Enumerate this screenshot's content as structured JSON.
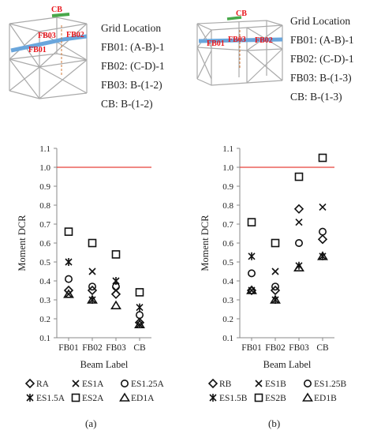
{
  "panels": [
    {
      "id": "a",
      "label": "(a)",
      "grid_location_title": "Grid Location",
      "grid_locations": [
        "FB01: (A-B)-1",
        "FB02: (C-D)-1",
        "FB03: B-(1-2)",
        "CB: B-(1-2)"
      ],
      "model_labels": [
        "CB",
        "FB03",
        "FB02",
        "FB01"
      ]
    },
    {
      "id": "b",
      "label": "(b)",
      "grid_location_title": "Grid Location",
      "grid_locations": [
        "FB01: (A-B)-1",
        "FB02: (C-D)-1",
        "FB03: B-(1-3)",
        "CB: B-(1-3)"
      ],
      "model_labels": [
        "CB",
        "FB01",
        "FB03",
        "FB02"
      ]
    }
  ],
  "colors": {
    "threshold": "#e8413a",
    "label_red": "#e8151b",
    "beam_blue": "#6aa6dc",
    "beam_green": "#48a84a",
    "frame": "#aaaaaa"
  },
  "chart_data": [
    {
      "type": "scatter",
      "ylabel": "Moment DCR",
      "xlabel": "Beam Label",
      "categories": [
        "FB01",
        "FB02",
        "FB03",
        "CB"
      ],
      "ylim": [
        0.1,
        1.1
      ],
      "yticks": [
        "0.1",
        "0.2",
        "0.3",
        "0.4",
        "0.5",
        "0.6",
        "0.7",
        "0.8",
        "0.9",
        "1.0",
        "1.1"
      ],
      "threshold": 1.0,
      "series": [
        {
          "name": "RA",
          "marker": "diamond",
          "values": [
            0.35,
            0.35,
            0.33,
            0.18
          ]
        },
        {
          "name": "ES1A",
          "marker": "x",
          "values": [
            0.33,
            0.45,
            0.35,
            0.17
          ]
        },
        {
          "name": "ES1.25A",
          "marker": "circle",
          "values": [
            0.41,
            0.37,
            0.37,
            0.22
          ]
        },
        {
          "name": "ES1.5A",
          "marker": "asterisk",
          "values": [
            0.5,
            0.3,
            0.4,
            0.26
          ]
        },
        {
          "name": "ES2A",
          "marker": "square",
          "values": [
            0.66,
            0.6,
            0.54,
            0.34
          ]
        },
        {
          "name": "ED1A",
          "marker": "triangle",
          "values": [
            0.33,
            0.3,
            0.27,
            0.17
          ]
        }
      ]
    },
    {
      "type": "scatter",
      "ylabel": "Moment DCR",
      "xlabel": "Beam Label",
      "categories": [
        "FB01",
        "FB02",
        "FB03",
        "CB"
      ],
      "ylim": [
        0.1,
        1.1
      ],
      "yticks": [
        "0.1",
        "0.2",
        "0.3",
        "0.4",
        "0.5",
        "0.6",
        "0.7",
        "0.8",
        "0.9",
        "1.0",
        "1.1"
      ],
      "threshold": 1.0,
      "series": [
        {
          "name": "RB",
          "marker": "diamond",
          "values": [
            0.35,
            0.35,
            0.78,
            0.62
          ]
        },
        {
          "name": "ES1B",
          "marker": "x",
          "values": [
            0.35,
            0.45,
            0.71,
            0.79
          ]
        },
        {
          "name": "ES1.25B",
          "marker": "circle",
          "values": [
            0.44,
            0.37,
            0.6,
            0.66
          ]
        },
        {
          "name": "ES1.5B",
          "marker": "asterisk",
          "values": [
            0.53,
            0.3,
            0.48,
            0.53
          ]
        },
        {
          "name": "ES2B",
          "marker": "square",
          "values": [
            0.71,
            0.6,
            0.95,
            1.05
          ]
        },
        {
          "name": "ED1B",
          "marker": "triangle",
          "values": [
            0.35,
            0.3,
            0.47,
            0.53
          ]
        }
      ]
    }
  ]
}
